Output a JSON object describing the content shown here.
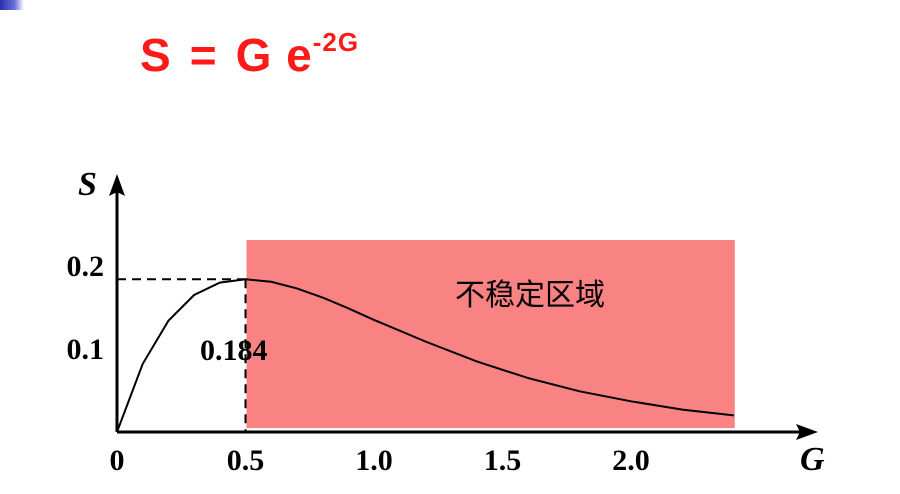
{
  "formula": {
    "lhs": "S",
    "eq": "=",
    "rhs": "G e",
    "exponent": "-2G",
    "color": "#ff1a1a"
  },
  "region": {
    "label": "不稳定区域",
    "color": "#f98383"
  },
  "peak_label": "0.184",
  "chart_data": {
    "type": "line",
    "function": "S = G e^(-2G)",
    "xlabel": "G",
    "ylabel": "S",
    "x_ticks": [
      "0",
      "0.5",
      "1.0",
      "1.5",
      "2.0"
    ],
    "y_ticks": [
      "0.1",
      "0.2"
    ],
    "xlim": [
      0,
      2.4
    ],
    "ylim": [
      0,
      0.25
    ],
    "series": [
      {
        "x": [
          0,
          0.1,
          0.2,
          0.3,
          0.4,
          0.5,
          0.6,
          0.7,
          0.8,
          0.9,
          1.0,
          1.2,
          1.4,
          1.5,
          1.6,
          1.8,
          2.0,
          2.2,
          2.4
        ],
        "y": [
          0,
          0.082,
          0.134,
          0.165,
          0.18,
          0.184,
          0.181,
          0.173,
          0.162,
          0.149,
          0.135,
          0.109,
          0.085,
          0.075,
          0.065,
          0.049,
          0.037,
          0.027,
          0.02
        ]
      }
    ],
    "peak": {
      "x": 0.5,
      "y": 0.184
    },
    "shaded_region": {
      "x_start": 0.5,
      "x_end": 2.4,
      "label": "不稳定区域"
    }
  }
}
